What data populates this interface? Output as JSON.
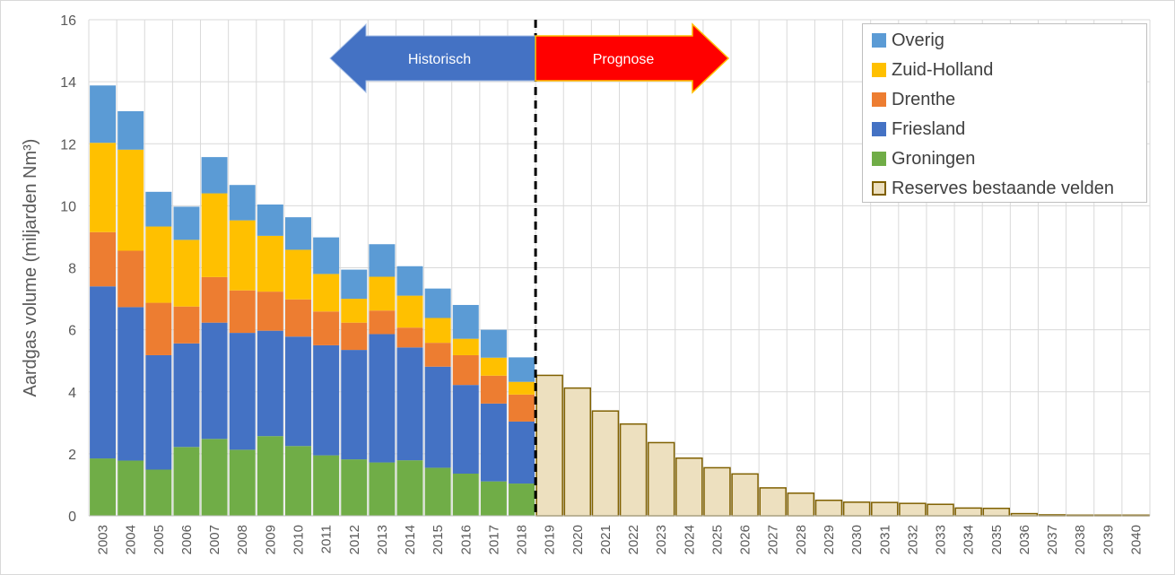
{
  "chart_data": {
    "type": "bar",
    "stacked": true,
    "ylabel": "Aardgas volume (miljarden Nm³)",
    "xlabel": "",
    "ylim": [
      0,
      16
    ],
    "yticks": [
      0,
      2,
      4,
      6,
      8,
      10,
      12,
      14,
      16
    ],
    "grid": true,
    "legend_position": "top-right",
    "categories": [
      "2003",
      "2004",
      "2005",
      "2006",
      "2007",
      "2008",
      "2009",
      "2010",
      "2011",
      "2012",
      "2013",
      "2014",
      "2015",
      "2016",
      "2017",
      "2018",
      "2019",
      "2020",
      "2021",
      "2022",
      "2023",
      "2024",
      "2025",
      "2026",
      "2027",
      "2028",
      "2029",
      "2030",
      "2031",
      "2032",
      "2033",
      "2034",
      "2035",
      "2036",
      "2037",
      "2038",
      "2039",
      "2040"
    ],
    "series": [
      {
        "name": "Groningen",
        "color": "#70ad47",
        "values": [
          1.85,
          1.78,
          1.49,
          2.22,
          2.48,
          2.13,
          2.57,
          2.25,
          1.95,
          1.82,
          1.72,
          1.79,
          1.55,
          1.36,
          1.11,
          1.04,
          null,
          null,
          null,
          null,
          null,
          null,
          null,
          null,
          null,
          null,
          null,
          null,
          null,
          null,
          null,
          null,
          null,
          null,
          null,
          null,
          null,
          null
        ]
      },
      {
        "name": "Friesland",
        "color": "#4472c4",
        "values": [
          5.55,
          4.95,
          3.69,
          3.34,
          3.75,
          3.77,
          3.4,
          3.53,
          3.55,
          3.53,
          4.14,
          3.64,
          3.26,
          2.86,
          2.51,
          2.0,
          null,
          null,
          null,
          null,
          null,
          null,
          null,
          null,
          null,
          null,
          null,
          null,
          null,
          null,
          null,
          null,
          null,
          null,
          null,
          null,
          null,
          null
        ]
      },
      {
        "name": "Drenthe",
        "color": "#ed7d31",
        "values": [
          1.75,
          1.82,
          1.69,
          1.19,
          1.47,
          1.37,
          1.26,
          1.2,
          1.09,
          0.88,
          0.76,
          0.64,
          0.77,
          0.96,
          0.9,
          0.87,
          null,
          null,
          null,
          null,
          null,
          null,
          null,
          null,
          null,
          null,
          null,
          null,
          null,
          null,
          null,
          null,
          null,
          null,
          null,
          null,
          null,
          null
        ]
      },
      {
        "name": "Zuid-Holland",
        "color": "#ffc000",
        "values": [
          2.88,
          3.26,
          2.46,
          2.15,
          2.7,
          2.26,
          1.8,
          1.6,
          1.21,
          0.77,
          1.09,
          1.03,
          0.8,
          0.53,
          0.58,
          0.41,
          null,
          null,
          null,
          null,
          null,
          null,
          null,
          null,
          null,
          null,
          null,
          null,
          null,
          null,
          null,
          null,
          null,
          null,
          null,
          null,
          null,
          null
        ]
      },
      {
        "name": "Overig",
        "color": "#5b9bd5",
        "values": [
          1.85,
          1.24,
          1.12,
          1.07,
          1.17,
          1.14,
          1.01,
          1.05,
          1.18,
          0.94,
          1.05,
          0.95,
          0.95,
          1.09,
          0.9,
          0.79,
          null,
          null,
          null,
          null,
          null,
          null,
          null,
          null,
          null,
          null,
          null,
          null,
          null,
          null,
          null,
          null,
          null,
          null,
          null,
          null,
          null,
          null
        ]
      },
      {
        "name": "Reserves bestaande velden",
        "color": "#ede0bf",
        "border_color": "#7f6000",
        "values": [
          null,
          null,
          null,
          null,
          null,
          null,
          null,
          null,
          null,
          null,
          null,
          null,
          null,
          null,
          null,
          null,
          4.53,
          4.12,
          3.38,
          2.96,
          2.36,
          1.86,
          1.55,
          1.35,
          0.9,
          0.73,
          0.5,
          0.44,
          0.43,
          0.4,
          0.37,
          0.25,
          0.24,
          0.07,
          0.03,
          0.02,
          0.02,
          0.02
        ]
      }
    ],
    "legend_order": [
      "Overig",
      "Zuid-Holland",
      "Drenthe",
      "Friesland",
      "Groningen",
      "Reserves bestaande velden"
    ],
    "annotations": {
      "historical_label": "Historisch",
      "historical_color": "#4472c4",
      "forecast_label": "Prognose",
      "forecast_color": "#ff0000",
      "divider_after_category": "2018"
    }
  }
}
